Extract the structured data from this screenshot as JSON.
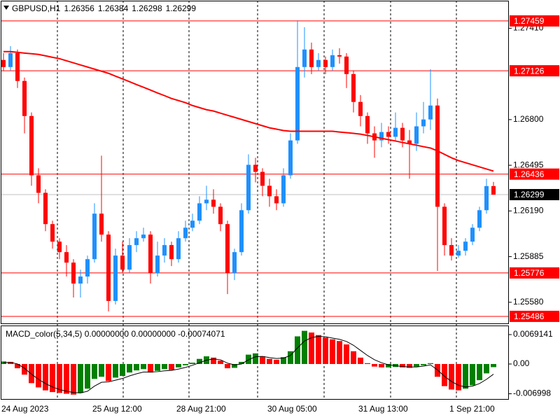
{
  "chart_data": [
    {
      "type": "candlestick",
      "symbol": "GBPUSD,H1",
      "open": [
        1.27198,
        1.27151,
        1.27244,
        1.27058,
        1.26824,
        1.26428,
        1.26311,
        1.26102,
        1.25985,
        1.25915,
        1.25845,
        1.25705,
        1.25752,
        1.25868,
        1.26172,
        1.26032,
        1.25589,
        1.25892,
        1.25798,
        1.25962,
        1.26008,
        1.26032,
        1.25775,
        1.25892,
        1.25962,
        1.25868,
        1.26008,
        1.26078,
        1.26125,
        1.26241,
        1.26265,
        1.26218,
        1.26102,
        1.25775,
        1.25915,
        1.26195,
        1.26498,
        1.26451,
        1.26358,
        1.26288,
        1.26241,
        1.26428,
        1.26661,
        1.27151,
        1.27268,
        1.27151,
        1.27198,
        1.27151,
        1.2723,
        1.27221,
        1.27104,
        1.26918,
        1.26824,
        1.26708,
        1.26661,
        1.26717,
        1.26685,
        1.26745,
        1.26661,
        1.26638,
        1.26755,
        1.26801,
        1.26894,
        1.26218,
        1.25962,
        1.25892,
        1.25924,
        1.25985,
        1.26078,
        1.26195,
        1.26356
      ],
      "high": [
        1.27244,
        1.27291,
        1.27268,
        1.27081,
        1.26848,
        1.26475,
        1.26335,
        1.26125,
        1.26008,
        1.25962,
        1.25868,
        1.25798,
        1.25892,
        1.26241,
        1.26559,
        1.26055,
        1.25938,
        1.25985,
        1.26008,
        1.26055,
        1.26078,
        1.26055,
        1.25985,
        1.26008,
        1.25985,
        1.26055,
        1.26125,
        1.26172,
        1.26288,
        1.26358,
        1.26335,
        1.26241,
        1.26125,
        1.25938,
        1.26241,
        1.26568,
        1.26545,
        1.26475,
        1.26405,
        1.26335,
        1.26475,
        1.26708,
        1.27463,
        1.27417,
        1.27314,
        1.27244,
        1.27221,
        1.27268,
        1.27277,
        1.27244,
        1.27128,
        1.26964,
        1.26848,
        1.26755,
        1.26778,
        1.26755,
        1.26848,
        1.26778,
        1.26731,
        1.26848,
        1.26918,
        1.27137,
        1.26941,
        1.26241,
        1.26008,
        1.25962,
        1.26008,
        1.26102,
        1.26218,
        1.26405,
        1.26384
      ],
      "low": [
        1.27128,
        1.27128,
        1.27011,
        1.26708,
        1.26358,
        1.26241,
        1.26055,
        1.25938,
        1.25868,
        1.25752,
        1.25612,
        1.25612,
        1.25705,
        1.25845,
        1.25985,
        1.25519,
        1.25565,
        1.25775,
        1.25775,
        1.25915,
        1.25985,
        1.25705,
        1.25752,
        1.25845,
        1.25822,
        1.25845,
        1.25985,
        1.26055,
        1.26102,
        1.26195,
        1.26172,
        1.26055,
        1.25635,
        1.25728,
        1.25892,
        1.26172,
        1.26381,
        1.26288,
        1.26218,
        1.26195,
        1.26218,
        1.26405,
        1.26638,
        1.27081,
        1.27104,
        1.27128,
        1.27104,
        1.27128,
        1.27174,
        1.27011,
        1.26848,
        1.26755,
        1.26638,
        1.26545,
        1.26615,
        1.26638,
        1.26661,
        1.26615,
        1.26405,
        1.26591,
        1.26708,
        1.26731,
        1.25789,
        1.25892,
        1.25859,
        1.25878,
        1.25892,
        1.25962,
        1.26055,
        1.26172,
        1.26298
      ],
      "close": [
        1.27151,
        1.27244,
        1.27058,
        1.26824,
        1.26428,
        1.26311,
        1.26102,
        1.25985,
        1.25915,
        1.25845,
        1.25705,
        1.25752,
        1.25868,
        1.26172,
        1.26032,
        1.25589,
        1.25892,
        1.25798,
        1.25962,
        1.26008,
        1.26032,
        1.25775,
        1.25892,
        1.25962,
        1.25868,
        1.26008,
        1.26078,
        1.26125,
        1.26241,
        1.26265,
        1.26218,
        1.26102,
        1.25775,
        1.25915,
        1.26195,
        1.26498,
        1.26451,
        1.26358,
        1.26288,
        1.26241,
        1.26428,
        1.26661,
        1.27151,
        1.27268,
        1.27151,
        1.27198,
        1.27151,
        1.2723,
        1.27221,
        1.27104,
        1.26918,
        1.26824,
        1.26708,
        1.26661,
        1.26717,
        1.26685,
        1.26745,
        1.26661,
        1.26638,
        1.26755,
        1.26801,
        1.26894,
        1.26218,
        1.25962,
        1.25892,
        1.25924,
        1.25985,
        1.26078,
        1.26195,
        1.26356,
        1.26299
      ],
      "ma": [
        1.27254,
        1.27254,
        1.27249,
        1.27244,
        1.2724,
        1.27235,
        1.27226,
        1.27216,
        1.27207,
        1.27193,
        1.27179,
        1.27165,
        1.27151,
        1.27137,
        1.27123,
        1.27109,
        1.2709,
        1.27072,
        1.27053,
        1.27034,
        1.27016,
        1.26997,
        1.26978,
        1.2696,
        1.26941,
        1.26927,
        1.26913,
        1.26894,
        1.2688,
        1.26866,
        1.26857,
        1.26843,
        1.26829,
        1.26815,
        1.26801,
        1.26787,
        1.26773,
        1.26759,
        1.26745,
        1.26736,
        1.26727,
        1.26722,
        1.26722,
        1.26722,
        1.26722,
        1.26722,
        1.26722,
        1.26722,
        1.26717,
        1.26713,
        1.26708,
        1.26703,
        1.26694,
        1.26685,
        1.26675,
        1.26666,
        1.26657,
        1.26647,
        1.26638,
        1.26629,
        1.26619,
        1.2661,
        1.26591,
        1.26568,
        1.26545,
        1.26526,
        1.26512,
        1.26498,
        1.26484,
        1.2647,
        1.26456
      ],
      "categories": [
        "24 Aug 2023",
        null,
        null,
        null,
        null,
        null,
        null,
        null,
        null,
        null,
        null,
        null,
        null,
        "25 Aug 12:00",
        null,
        null,
        null,
        null,
        null,
        null,
        null,
        null,
        null,
        null,
        null,
        "28 Aug 21:00",
        null,
        null,
        null,
        null,
        null,
        null,
        null,
        null,
        null,
        null,
        null,
        null,
        "30 Aug 05:00",
        null,
        null,
        null,
        null,
        null,
        null,
        null,
        null,
        null,
        null,
        null,
        null,
        "31 Aug 13:00",
        null,
        null,
        null,
        null,
        null,
        null,
        null,
        null,
        null,
        null,
        null,
        null,
        "1 Sep 21:00",
        null,
        null,
        null,
        null,
        null,
        null
      ],
      "levels": [
        1.27459,
        1.27126,
        1.26436,
        1.25776,
        1.25486
      ],
      "ylim": [
        1.25439,
        1.27594
      ],
      "yticks": [
        {
          "value": 1.2741,
          "label": "1.27410"
        },
        {
          "value": 1.268,
          "label": "1.26800"
        },
        1.26495,
        {
          "value": 1.2619,
          "label": "1.26190"
        },
        1.25885,
        {
          "value": 1.2558,
          "label": "1.25580"
        }
      ],
      "up_color": "#1e90ff",
      "down_color": "#ff0000",
      "ma_color": "#ff0000",
      "level_color": "#ff0000"
    },
    {
      "type": "macd",
      "label": "MACD_color(5,34,5) 0.00000000 0.00000000 -0.00074071",
      "values": [
        0.0006,
        0.0005,
        -0.001,
        -0.0025,
        -0.0045,
        -0.0055,
        -0.0062,
        -0.0066,
        -0.0068,
        -0.007,
        -0.0072,
        -0.0068,
        -0.0058,
        -0.0035,
        -0.003,
        -0.004,
        -0.0032,
        -0.0028,
        -0.002,
        -0.0015,
        -0.0012,
        -0.002,
        -0.0016,
        -0.0012,
        -0.0014,
        -0.0008,
        -0.0003,
        0.0003,
        0.0012,
        0.0018,
        0.0015,
        0.0008,
        -0.001,
        -0.0009,
        0.0005,
        0.0022,
        0.0025,
        0.0018,
        0.0012,
        0.001,
        0.0016,
        0.003,
        0.0065,
        0.0078,
        0.0074,
        0.0068,
        0.0062,
        0.0058,
        0.0054,
        0.0046,
        0.003,
        0.0015,
        0.0002,
        -0.0006,
        -0.0008,
        -0.0008,
        -0.0007,
        -0.0008,
        -0.0009,
        -0.0006,
        -0.0003,
        0.0002,
        -0.003,
        -0.0052,
        -0.006,
        -0.0062,
        -0.0058,
        -0.005,
        -0.0038,
        -0.0022,
        -0.00074
      ],
      "signal": [
        0.0003,
        0.0004,
        0,
        -0.001,
        -0.0024,
        -0.0036,
        -0.0046,
        -0.0054,
        -0.006,
        -0.0064,
        -0.0067,
        -0.0068,
        -0.0064,
        -0.0052,
        -0.0043,
        -0.0042,
        -0.0038,
        -0.0034,
        -0.0028,
        -0.0023,
        -0.0019,
        -0.0019,
        -0.0018,
        -0.0016,
        -0.0015,
        -0.0012,
        -0.0008,
        -0.0003,
        0.0003,
        0.0009,
        0.0012,
        0.001,
        0.0002,
        -0.0002,
        0,
        0.001,
        0.0017,
        0.0018,
        0.0015,
        0.0013,
        0.0014,
        0.002,
        0.0038,
        0.0054,
        0.0062,
        0.0065,
        0.0064,
        0.0061,
        0.0058,
        0.0053,
        0.0044,
        0.0032,
        0.002,
        0.001,
        0.0003,
        -0.0002,
        -0.0004,
        -0.0006,
        -0.0007,
        -0.0007,
        -0.0005,
        -0.0002,
        -0.0014,
        -0.0029,
        -0.0041,
        -0.005,
        -0.0054,
        -0.0052,
        -0.0046,
        -0.0036,
        -0.0024
      ],
      "ylim": [
        -0.00823,
        0.00889
      ],
      "yticks": [
        0.0069141,
        {
          "value": 0,
          "label": "0.00"
        },
        -0.006998
      ],
      "up_color": "#008000",
      "down_color": "#ff0000",
      "signal_color": "#000000"
    }
  ]
}
